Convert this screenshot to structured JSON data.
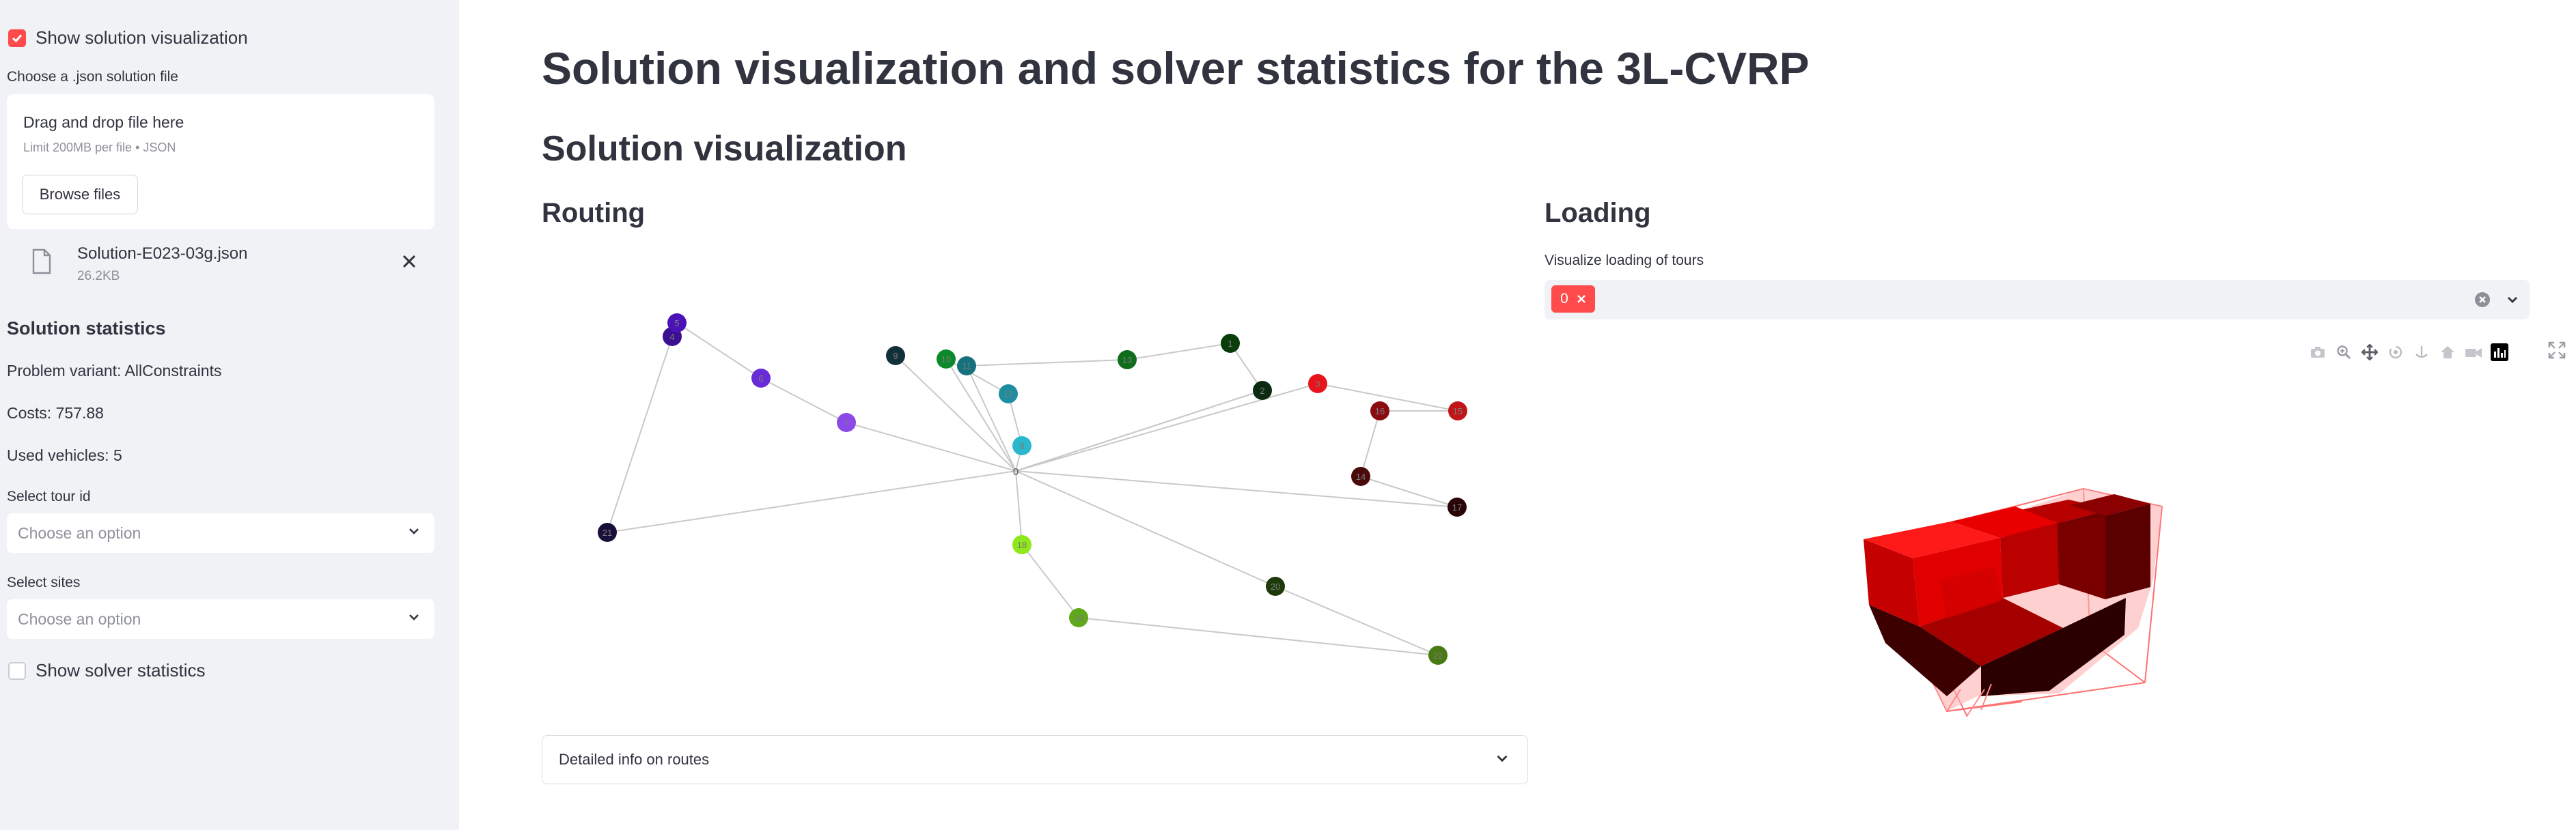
{
  "sidebar": {
    "show_visualization_label": "Show solution visualization",
    "choose_file_label": "Choose a .json solution file",
    "drag_text": "Drag and drop file here",
    "limit_text": "Limit 200MB per file • JSON",
    "browse_label": "Browse files",
    "file_name": "Solution-E023-03g.json",
    "file_size": "26.2KB",
    "stats_title": "Solution statistics",
    "problem_variant": "Problem variant: AllConstraints",
    "costs": "Costs: 757.88",
    "used_vehicles": "Used vehicles: 5",
    "tour_id_label": "Select tour id",
    "tour_id_placeholder": "Choose an option",
    "sites_label": "Select sites",
    "sites_placeholder": "Choose an option",
    "solver_stats_label": "Show solver statistics",
    "show_visualization_checked": true,
    "solver_stats_checked": false
  },
  "main": {
    "title": "Solution visualization and solver statistics for the 3L-CVRP",
    "section_title": "Solution visualization",
    "routing_title": "Routing",
    "loading_title": "Loading",
    "expander_label": "Detailed info on routes",
    "visualize_label": "Visualize loading of tours",
    "selected_tag": "0"
  },
  "routing": {
    "depot_label": "0",
    "nodes": [
      {
        "id": "1",
        "color": "#0b3d0b"
      },
      {
        "id": "2",
        "color": "#0a2a12"
      },
      {
        "id": "3",
        "color": "#e8141c"
      },
      {
        "id": "4",
        "color": "#3b0f8f"
      },
      {
        "id": "5",
        "color": "#4b12b8"
      },
      {
        "id": "6",
        "color": "#6a2bd9"
      },
      {
        "id": "7",
        "color": "#8b4ae8"
      },
      {
        "id": "8",
        "color": "#2bb8cc"
      },
      {
        "id": "9",
        "color": "#12303a"
      },
      {
        "id": "10",
        "color": "#0a8a2a"
      },
      {
        "id": "11",
        "color": "#15717e"
      },
      {
        "id": "12",
        "color": "#1c8ea0"
      },
      {
        "id": "13",
        "color": "#0f6e1c"
      },
      {
        "id": "14",
        "color": "#4a0a0a"
      },
      {
        "id": "15",
        "color": "#c21518"
      },
      {
        "id": "16",
        "color": "#8a0c10"
      },
      {
        "id": "17",
        "color": "#2a0508"
      },
      {
        "id": "18",
        "color": "#8ee81a"
      },
      {
        "id": "19",
        "color": "#5ea81a"
      },
      {
        "id": "20",
        "color": "#1d3a0a"
      },
      {
        "id": "21",
        "color": "#1a0f3a"
      },
      {
        "id": "22",
        "color": "#4a7a14"
      }
    ]
  },
  "colors": {
    "accent": "#ff4b4b",
    "sidebar_bg": "#f0f2f6",
    "text": "#31333f",
    "muted": "#8e9099"
  },
  "icons": [
    "checkbox-checked-icon",
    "file-icon",
    "close-icon",
    "chevron-down-icon",
    "camera-icon",
    "zoom-icon",
    "pan-icon",
    "orbit-icon",
    "turntable-icon",
    "home-icon",
    "reset-camera-icon",
    "plotly-logo-icon",
    "fullscreen-icon",
    "clear-icon"
  ]
}
